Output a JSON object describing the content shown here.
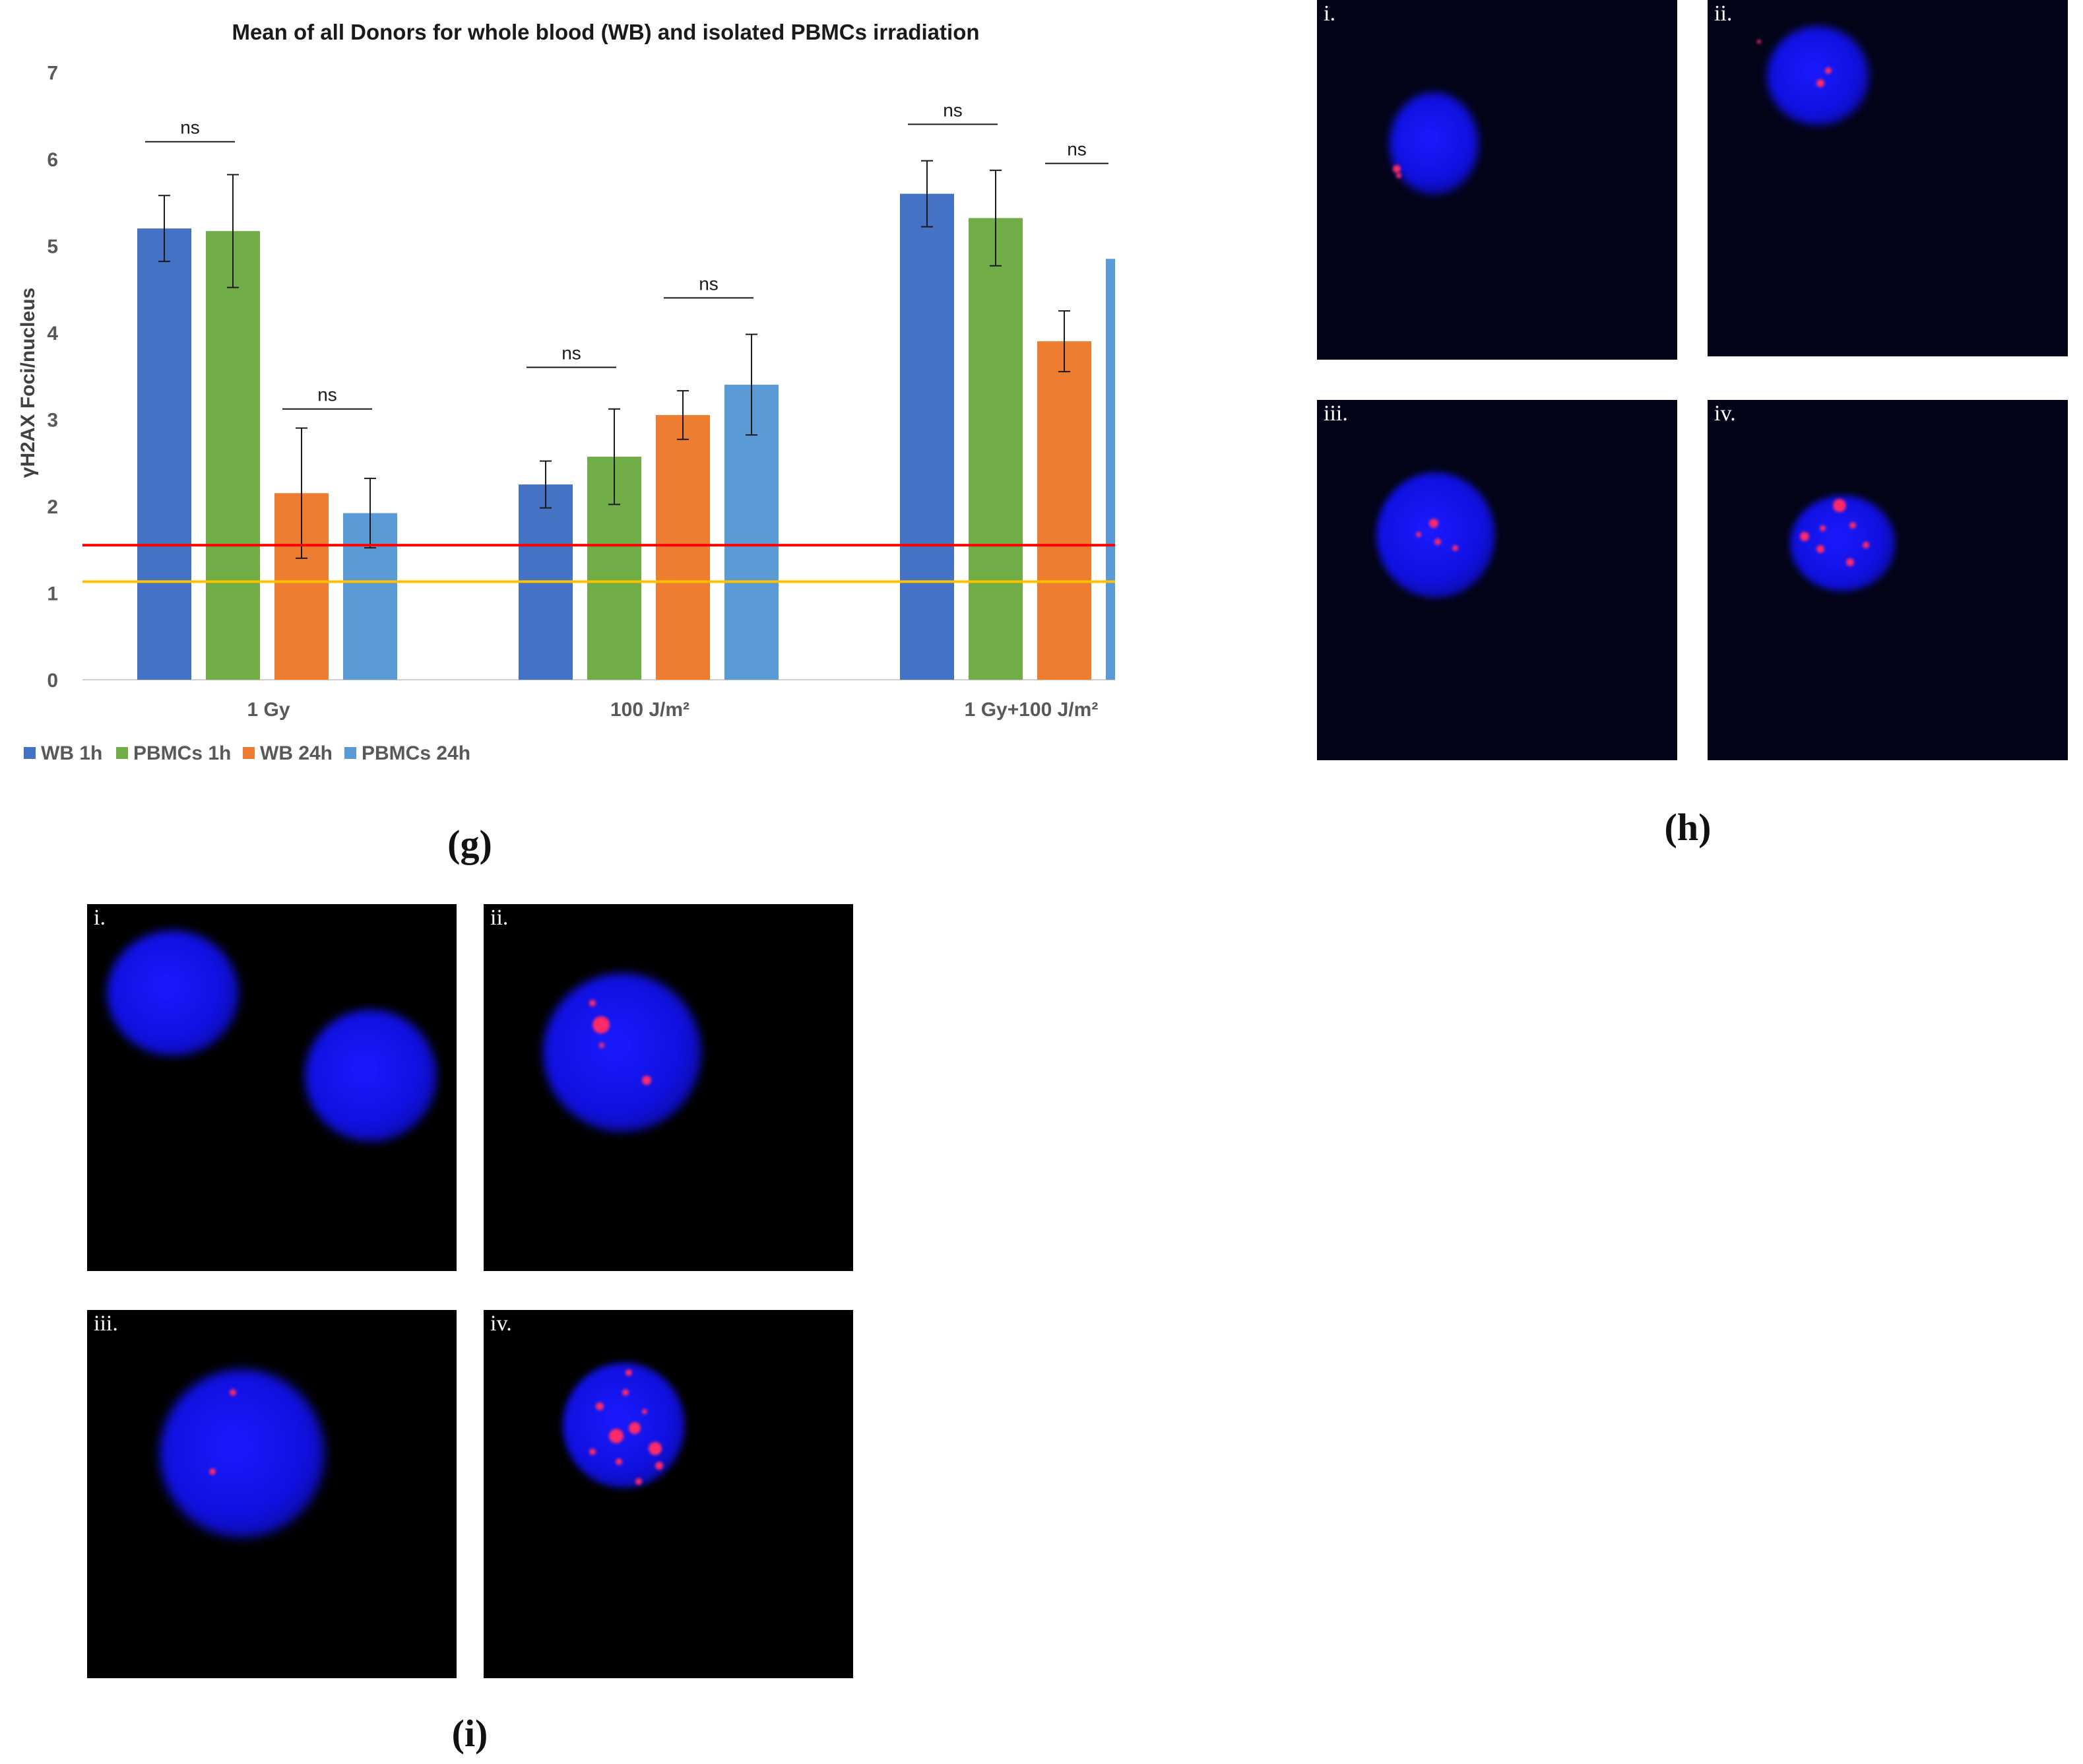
{
  "chart_data": {
    "type": "bar",
    "title": "Mean of all Donors for whole blood (WB) and isolated PBMCs irradiation",
    "ylabel": "γH2AX Foci/nucleus",
    "xlabel": "",
    "ylim": [
      0,
      7
    ],
    "yticks": [
      "0",
      "1",
      "2",
      "3",
      "4",
      "5",
      "6",
      "7"
    ],
    "categories": [
      "1 Gy",
      "100 J/m²",
      "1 Gy+100 J/m²"
    ],
    "series": [
      {
        "name": "WB 1h",
        "color": "#4472C4",
        "values": [
          5.2,
          2.25,
          5.6
        ],
        "errors": [
          0.38,
          0.27,
          0.38
        ]
      },
      {
        "name": "PBMCs 1h",
        "color": "#70AD47",
        "values": [
          5.17,
          2.57,
          5.32
        ],
        "errors": [
          0.65,
          0.55,
          0.55
        ]
      },
      {
        "name": "WB 24h",
        "color": "#ED7D31",
        "values": [
          2.15,
          3.05,
          3.9
        ],
        "errors": [
          0.75,
          0.28,
          0.35
        ]
      },
      {
        "name": "PBMCs 24h",
        "color": "#5B9BD5",
        "values": [
          1.92,
          3.4,
          4.85
        ],
        "errors": [
          0.4,
          0.58,
          null
        ]
      }
    ],
    "reference_lines": [
      {
        "value": 1.55,
        "color": "#FF0000"
      },
      {
        "value": 1.13,
        "color": "#FFC000"
      }
    ],
    "significance": [
      {
        "label": "ns",
        "category": 0,
        "pair": [
          0,
          1
        ],
        "y": 6.2
      },
      {
        "label": "ns",
        "category": 0,
        "pair": [
          2,
          3
        ],
        "y": 3.12
      },
      {
        "label": "ns",
        "category": 1,
        "pair": [
          0,
          1
        ],
        "y": 3.6
      },
      {
        "label": "ns",
        "category": 1,
        "pair": [
          2,
          3
        ],
        "y": 4.4
      },
      {
        "label": "ns",
        "category": 2,
        "pair": [
          0,
          1
        ],
        "y": 6.4
      },
      {
        "label": "ns",
        "category": 2,
        "pair": [
          2,
          3
        ],
        "y": 5.95
      }
    ],
    "legend_position": "bottom-left",
    "grid": false
  },
  "captions": {
    "g": "(g)",
    "h": "(h)",
    "i": "(i)"
  },
  "panels_h": [
    {
      "label": "i."
    },
    {
      "label": "ii."
    },
    {
      "label": "iii."
    },
    {
      "label": "iv."
    }
  ],
  "panels_i": [
    {
      "label": "i."
    },
    {
      "label": "ii."
    },
    {
      "label": "iii."
    },
    {
      "label": "iv."
    }
  ],
  "colors": {
    "nucleus": "#1a1aff",
    "focus": "#ff2a6a",
    "background_h": "#030418",
    "background_i": "#000000"
  }
}
